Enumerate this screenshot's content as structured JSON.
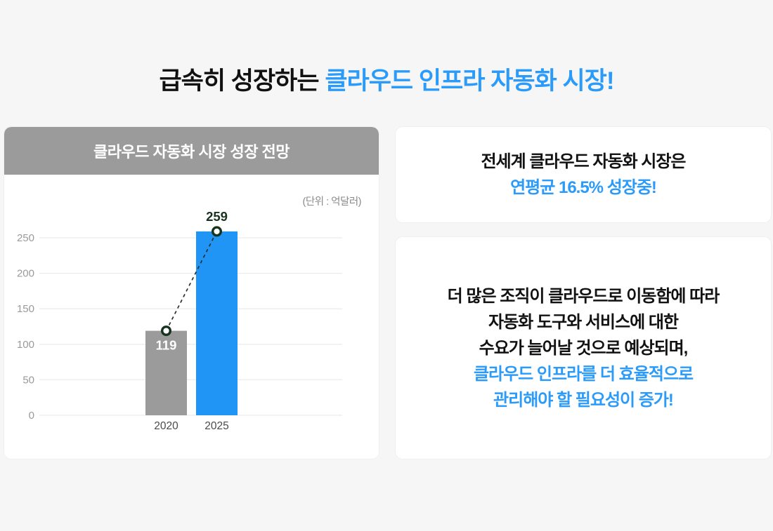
{
  "page": {
    "background": "#f6f6f7",
    "accent_blue": "#2b9bfa"
  },
  "title": {
    "prefix": "급속히 성장하는 ",
    "highlight": "클라우드 인프라 자동화 시장!"
  },
  "chart_card": {
    "header": "클라우드 자동화 시장 성장 전망",
    "unit_label": "(단위 : 억달러)"
  },
  "chart_data": {
    "type": "bar",
    "title": "클라우드 자동화 시장 성장 전망",
    "unit": "(단위 : 억달러)",
    "categories": [
      "2020",
      "2025"
    ],
    "values": [
      119,
      259
    ],
    "bar_colors": [
      "#9b9b9b",
      "#2095f6"
    ],
    "value_label_inside": [
      true,
      false
    ],
    "value_label_colors": [
      "#ffffff",
      "#17331f"
    ],
    "overlay_line": {
      "style": "dashed",
      "color": "#273129",
      "marker": "open-circle",
      "marker_ring_color": "#17331f",
      "connects": "tops of bars"
    },
    "xlabel": "",
    "ylabel": "",
    "ylim": [
      0,
      250
    ],
    "ytick_step": 50,
    "yticks": [
      0,
      50,
      100,
      150,
      200,
      250
    ],
    "grid": true,
    "grid_color": "#ececec",
    "legend": "none"
  },
  "info_cards": [
    {
      "lines": [
        {
          "text": "전세계 클라우드 자동화 시장은",
          "tone": "dark"
        },
        {
          "text": "연평균 16.5% 성장중!",
          "tone": "accent"
        }
      ]
    },
    {
      "lines": [
        {
          "text": "더 많은 조직이 클라우드로 이동함에 따라",
          "tone": "dark"
        },
        {
          "text": "자동화 도구와 서비스에 대한",
          "tone": "dark"
        },
        {
          "text": "수요가 늘어날 것으로 예상되며,",
          "tone": "dark"
        },
        {
          "text": "클라우드 인프라를 더 효율적으로",
          "tone": "accent"
        },
        {
          "text": "관리해야 할 필요성이 증가!",
          "tone": "accent"
        }
      ]
    }
  ]
}
